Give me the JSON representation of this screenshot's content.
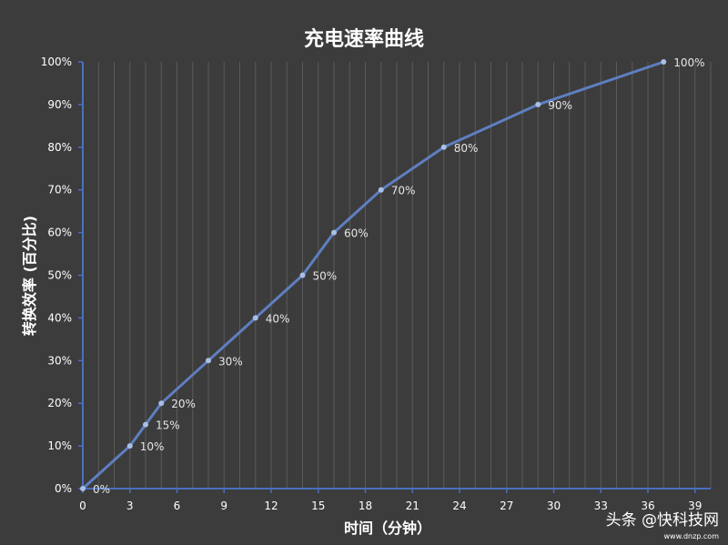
{
  "chart_data": {
    "type": "line",
    "title": "充电速率曲线",
    "xlabel": "时间（分钟）",
    "ylabel": "转换效率 (百分比)",
    "x": [
      0,
      3,
      4,
      5,
      8,
      11,
      14,
      16,
      19,
      23,
      29,
      37
    ],
    "y": [
      0,
      10,
      15,
      20,
      30,
      40,
      50,
      60,
      70,
      80,
      90,
      100
    ],
    "data_labels": [
      "0%",
      "10%",
      "15%",
      "20%",
      "30%",
      "40%",
      "50%",
      "60%",
      "70%",
      "80%",
      "90%",
      "100%"
    ],
    "xlim": [
      0,
      40
    ],
    "ylim": [
      0,
      100
    ],
    "x_ticks": [
      0,
      3,
      6,
      9,
      12,
      15,
      18,
      21,
      24,
      27,
      30,
      33,
      36,
      39
    ],
    "y_ticks": [
      0,
      10,
      20,
      30,
      40,
      50,
      60,
      70,
      80,
      90,
      100
    ],
    "y_tick_labels": [
      "0%",
      "10%",
      "20%",
      "30%",
      "40%",
      "50%",
      "60%",
      "70%",
      "80%",
      "90%",
      "100%"
    ],
    "grid": "vertical",
    "line_color": "#5e7fc0",
    "axis_color": "#4a6fbf",
    "background": "#3c3c3c"
  },
  "watermark": {
    "text": "头条 @快科技网",
    "url": "www.dnzp.com"
  }
}
